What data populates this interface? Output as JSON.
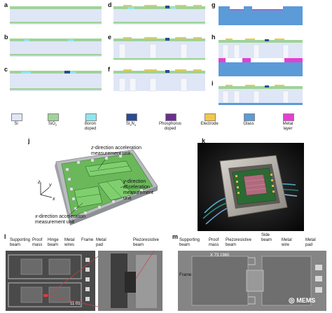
{
  "panel_labels": {
    "a": "a",
    "b": "b",
    "c": "c",
    "d": "d",
    "e": "e",
    "f": "f",
    "g": "g",
    "h": "h",
    "i": "i",
    "j": "j",
    "k": "k",
    "l": "l",
    "m": "m"
  },
  "legend": [
    {
      "label": "Si",
      "color": "#dfe6f6"
    },
    {
      "label": "SiO2",
      "color": "#9fd39a"
    },
    {
      "label": "Boron doped",
      "color": "#8fe6ee"
    },
    {
      "label": "Si3N4",
      "color": "#2b4a95"
    },
    {
      "label": "Phosphorus doped",
      "color": "#6a2f8d"
    },
    {
      "label": "Electrode",
      "color": "#f5c64a"
    },
    {
      "label": "Glass",
      "color": "#5b9bd8"
    },
    {
      "label": "Metal layer",
      "color": "#e53fd2"
    }
  ],
  "panel_j": {
    "axes": {
      "x": "x",
      "y": "y",
      "z": "z"
    },
    "z_unit": {
      "italic": "z",
      "rest": "-direction acceleration",
      "line2": "measurement unit"
    },
    "y_unit": {
      "italic": "y",
      "rest": "-direction",
      "line2": "acceleration",
      "line3": "measurement",
      "line4": "unit"
    },
    "x_unit": {
      "italic": "x",
      "rest": "-direction acceleration",
      "line2": "measurement unit"
    }
  },
  "panel_l": {
    "labels": {
      "supporting_beam": "Supporting\nbeam",
      "proof_mass": "Proof\nmass",
      "hinge_beam": "Hinge\nbeam",
      "metal_wires": "Metal\nwires",
      "frame": "Frame",
      "metal_pad": "Metal\npad",
      "piezoresistive_beam": "Piezoresistive\nbeam"
    },
    "sem_text": "11 01"
  },
  "panel_m": {
    "labels": {
      "supporting_beam": "Supporting\nbeam",
      "proof_mass": "Proof\nmass",
      "piezoresistive_beam": "Piezoresistive\nbeam",
      "side_beam": "Side\nbeam",
      "metal_wire": "Metal\nwire",
      "metal_pad": "Metal\npad",
      "frame": "Frame"
    },
    "sem_text": "X  73   1960"
  },
  "watermark": "MEMS"
}
